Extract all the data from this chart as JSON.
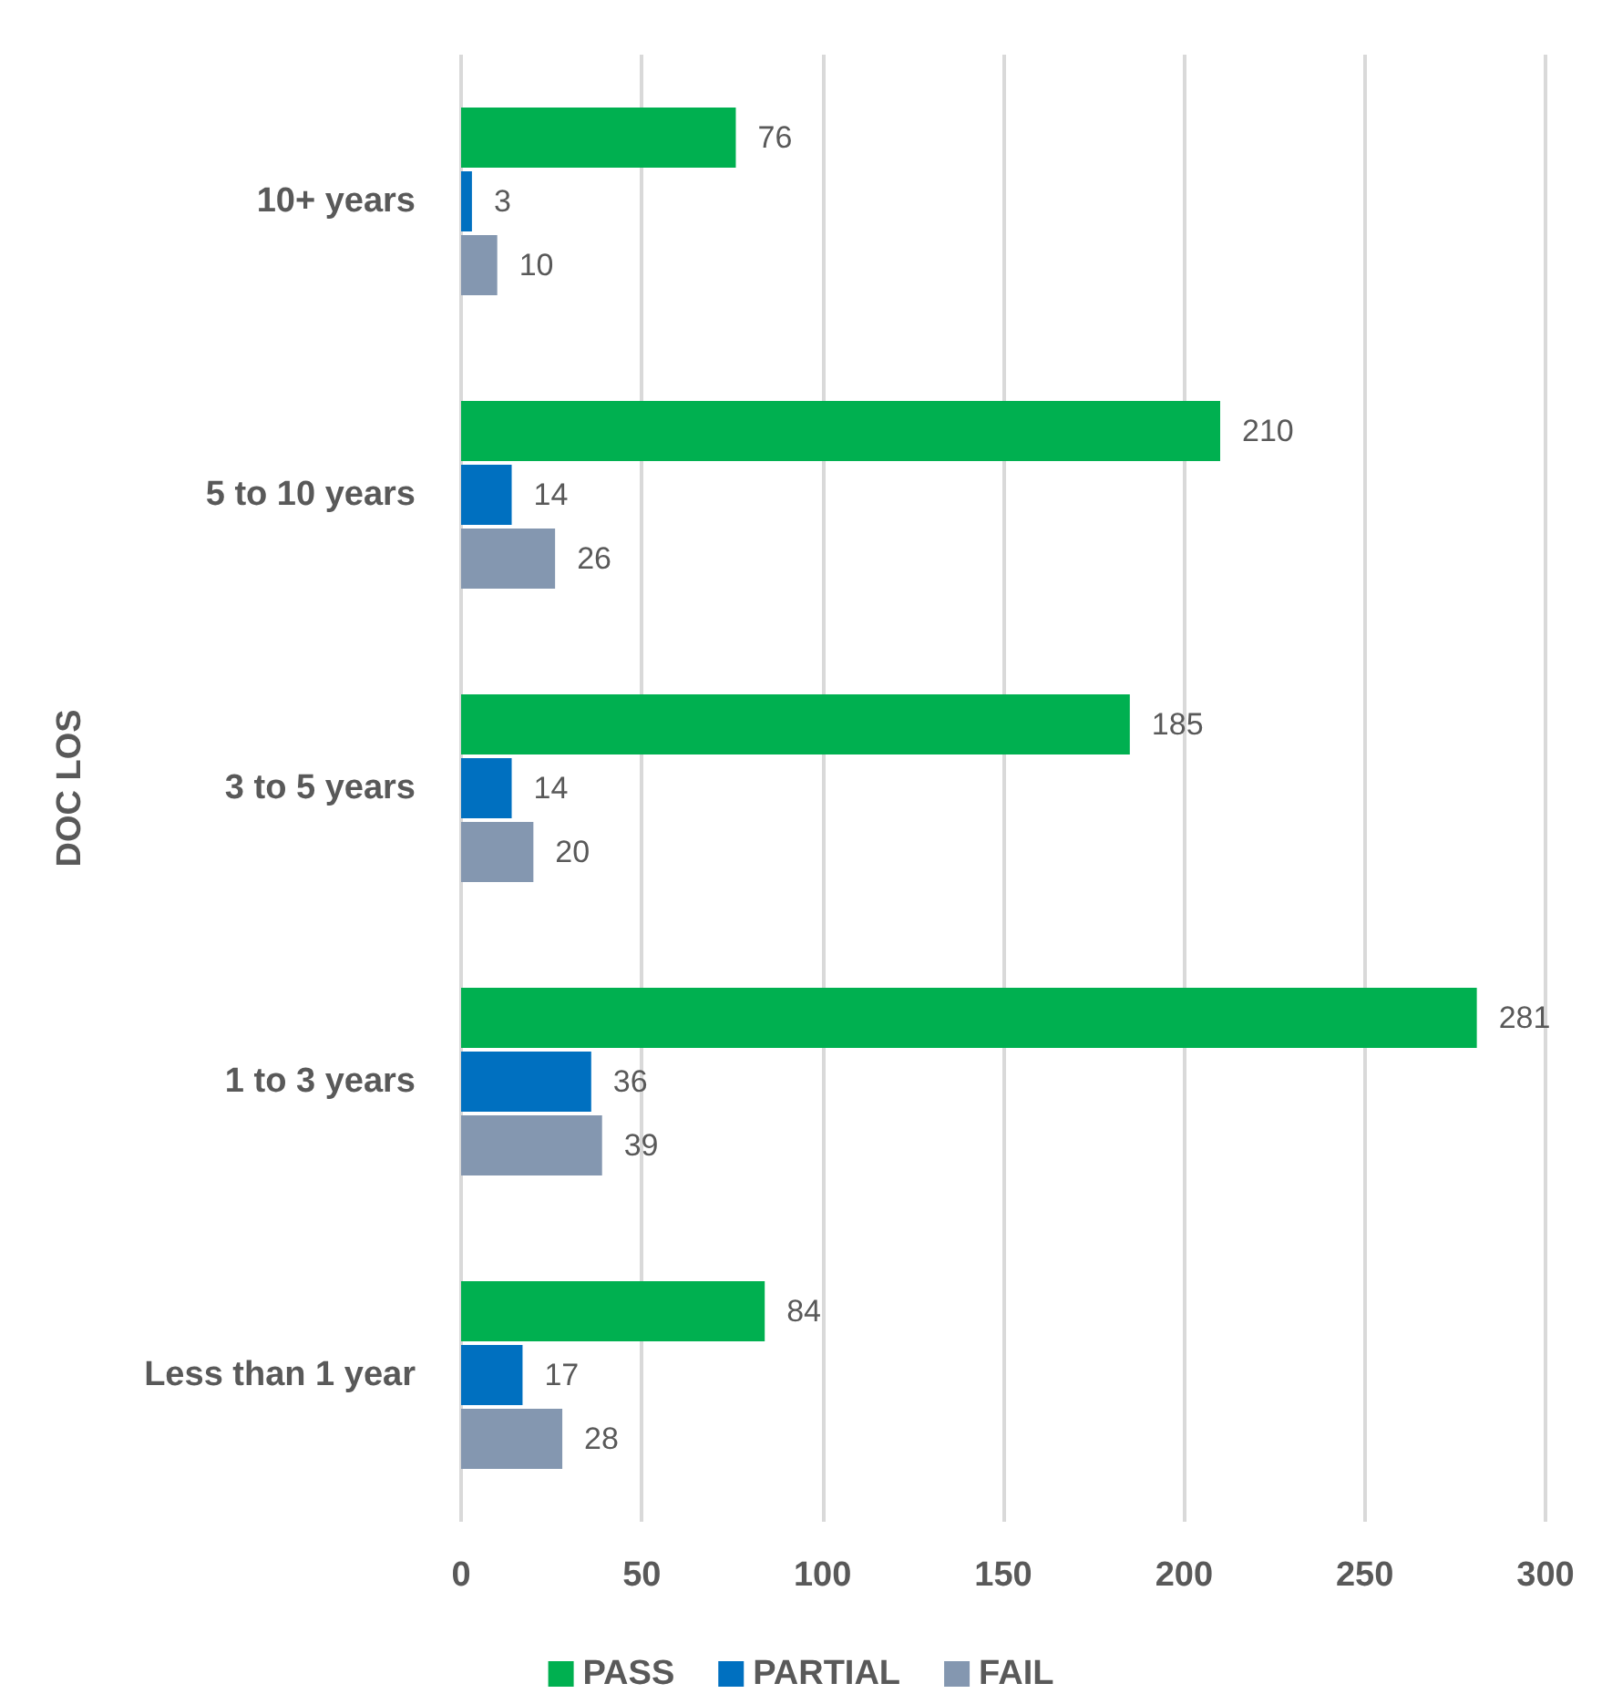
{
  "chart_data": {
    "type": "bar",
    "orientation": "horizontal",
    "ylabel": "DOC LOS",
    "categories": [
      "10+ years",
      "5 to 10 years",
      "3 to 5 years",
      "1 to 3 years",
      "Less than 1 year"
    ],
    "series": [
      {
        "name": "PASS",
        "color": "#00b050",
        "values": [
          76,
          210,
          185,
          281,
          84
        ]
      },
      {
        "name": "PARTIAL",
        "color": "#0070c0",
        "values": [
          3,
          14,
          14,
          36,
          17
        ]
      },
      {
        "name": "FAIL",
        "color": "#8497b0",
        "values": [
          10,
          26,
          20,
          39,
          28
        ]
      }
    ],
    "xlim": [
      0,
      300
    ],
    "xticks": [
      0,
      50,
      100,
      150,
      200,
      250,
      300
    ],
    "grid": "x",
    "data_labels": true,
    "legend": "bottom"
  }
}
